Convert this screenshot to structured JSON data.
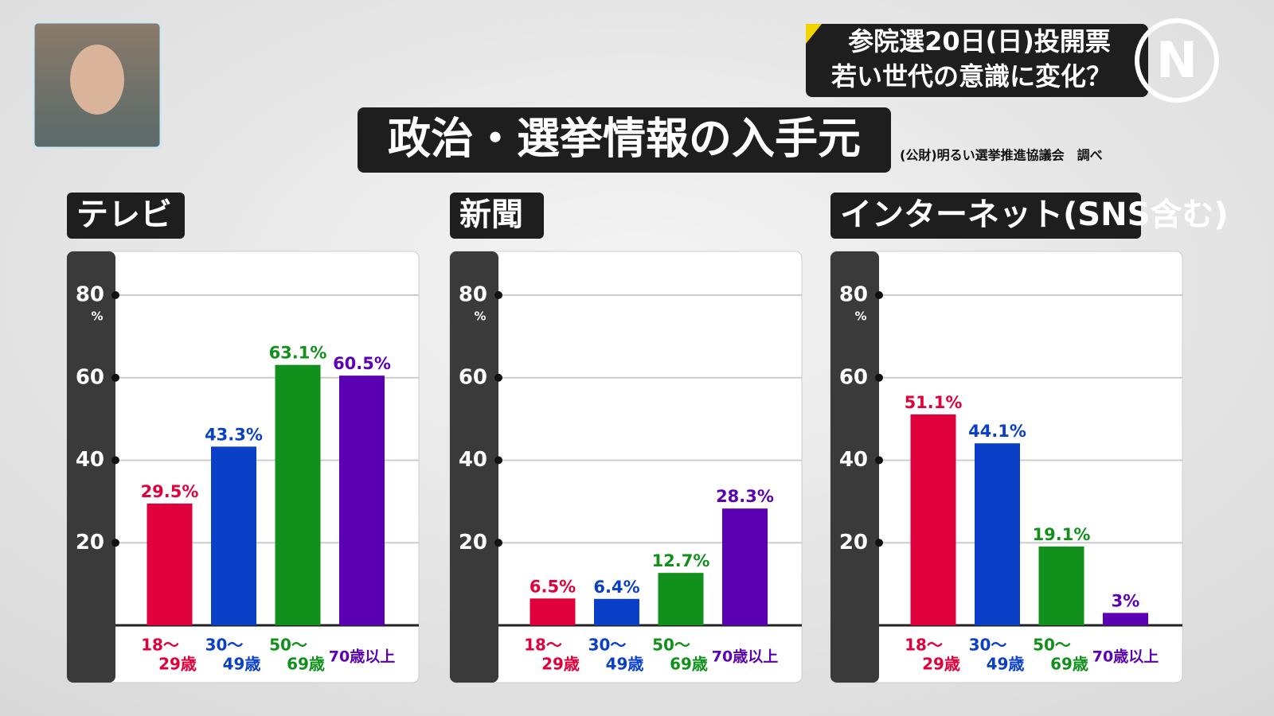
{
  "headline": [
    "参院選20日(日)投開票",
    "若い世代の意識に変化？"
  ],
  "title": "政治・選挙情報の入手元",
  "source": "(公財)明るい選挙推進協議会　調べ",
  "chart_data": [
    {
      "type": "bar",
      "title": "テレビ",
      "categories": [
        [
          "18〜",
          "29歳"
        ],
        [
          "30〜",
          "49歳"
        ],
        [
          "50〜",
          "69歳"
        ],
        [
          "70歳以上"
        ]
      ],
      "values": [
        29.5,
        43.3,
        63.1,
        60.5
      ],
      "value_labels": [
        "29.5%",
        "43.3%",
        "63.1%",
        "60.5%"
      ],
      "colors": [
        "#e0003c",
        "#0a3fc8",
        "#12901c",
        "#5c00b4"
      ],
      "ylim": [
        0,
        80
      ],
      "yticks": [
        20,
        40,
        60,
        80
      ],
      "y_unit": "%",
      "grid": true
    },
    {
      "type": "bar",
      "title": "新聞",
      "categories": [
        [
          "18〜",
          "29歳"
        ],
        [
          "30〜",
          "49歳"
        ],
        [
          "50〜",
          "69歳"
        ],
        [
          "70歳以上"
        ]
      ],
      "values": [
        6.5,
        6.4,
        12.7,
        28.3
      ],
      "value_labels": [
        "6.5%",
        "6.4%",
        "12.7%",
        "28.3%"
      ],
      "colors": [
        "#e0003c",
        "#0a3fc8",
        "#12901c",
        "#5c00b4"
      ],
      "ylim": [
        0,
        80
      ],
      "yticks": [
        20,
        40,
        60,
        80
      ],
      "y_unit": "%",
      "grid": true
    },
    {
      "type": "bar",
      "title": "インターネット(SNS含む)",
      "categories": [
        [
          "18〜",
          "29歳"
        ],
        [
          "30〜",
          "49歳"
        ],
        [
          "50〜",
          "69歳"
        ],
        [
          "70歳以上"
        ]
      ],
      "values": [
        51.1,
        44.1,
        19.1,
        3
      ],
      "value_labels": [
        "51.1%",
        "44.1%",
        "19.1%",
        "3%"
      ],
      "colors": [
        "#e0003c",
        "#0a3fc8",
        "#12901c",
        "#5c00b4"
      ],
      "ylim": [
        0,
        80
      ],
      "yticks": [
        20,
        40,
        60,
        80
      ],
      "y_unit": "%",
      "grid": true
    }
  ]
}
